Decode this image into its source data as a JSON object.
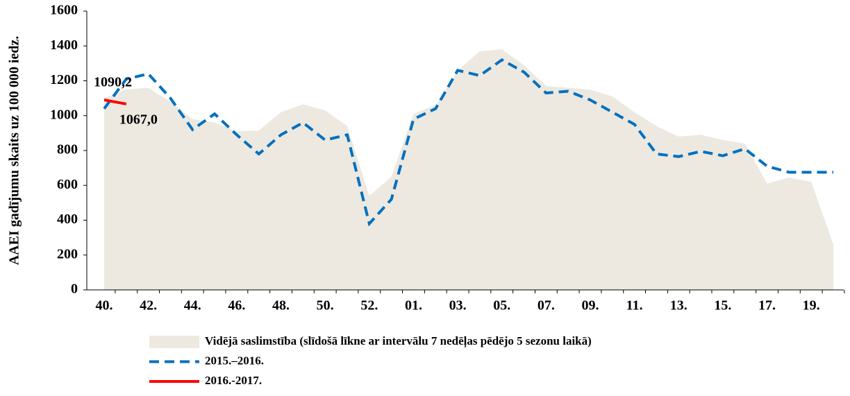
{
  "chart_data": {
    "type": "line",
    "y_label": "AAEI gadījumu skaits uz 100 000 iedz.",
    "categories": [
      "40.",
      null,
      "42.",
      null,
      "44.",
      null,
      "46.",
      null,
      "48.",
      null,
      "50.",
      null,
      "52.",
      null,
      "01.",
      null,
      "03.",
      null,
      "05.",
      null,
      "07.",
      null,
      "09.",
      null,
      "11.",
      null,
      "13.",
      null,
      "15.",
      null,
      "17.",
      null,
      "19.",
      null
    ],
    "series": [
      {
        "name": "Vidējā saslimstība (slīdošā līkne ar intervālu 7 nedēļas pēdējo 5 sezonu laikā)",
        "type": "area",
        "color": "#ede9e0",
        "values": [
          1100,
          1150,
          1160,
          1080,
          980,
          960,
          910,
          915,
          1020,
          1065,
          1030,
          940,
          540,
          650,
          1010,
          1060,
          1260,
          1370,
          1380,
          1290,
          1170,
          1160,
          1150,
          1110,
          1020,
          940,
          880,
          890,
          860,
          840,
          610,
          645,
          620,
          260
        ]
      },
      {
        "name": "2015.–2016.",
        "type": "line",
        "dashed": true,
        "color": "#0070c0",
        "values": [
          1040,
          1210,
          1240,
          1100,
          920,
          1010,
          890,
          780,
          890,
          960,
          860,
          890,
          380,
          520,
          980,
          1040,
          1260,
          1230,
          1320,
          1250,
          1130,
          1140,
          1090,
          1020,
          950,
          780,
          765,
          795,
          770,
          810,
          710,
          675,
          675,
          675
        ]
      },
      {
        "name": "2016.-2017.",
        "type": "line",
        "dashed": false,
        "color": "#ff0000",
        "values": [
          1090.2,
          1067.0,
          null,
          null,
          null,
          null,
          null,
          null,
          null,
          null,
          null,
          null,
          null,
          null,
          null,
          null,
          null,
          null,
          null,
          null,
          null,
          null,
          null,
          null,
          null,
          null,
          null,
          null,
          null,
          null,
          null,
          null,
          null,
          null
        ],
        "value_labels": [
          "1090,2",
          "1067,0",
          null,
          null,
          null,
          null,
          null,
          null,
          null,
          null,
          null,
          null,
          null,
          null,
          null,
          null,
          null,
          null,
          null,
          null,
          null,
          null,
          null,
          null,
          null,
          null,
          null,
          null,
          null,
          null,
          null,
          null,
          null,
          null
        ]
      }
    ],
    "ylim": [
      0,
      1600
    ],
    "yticks": [
      0,
      200,
      400,
      600,
      800,
      1000,
      1200,
      1400,
      1600
    ],
    "grid": false
  }
}
